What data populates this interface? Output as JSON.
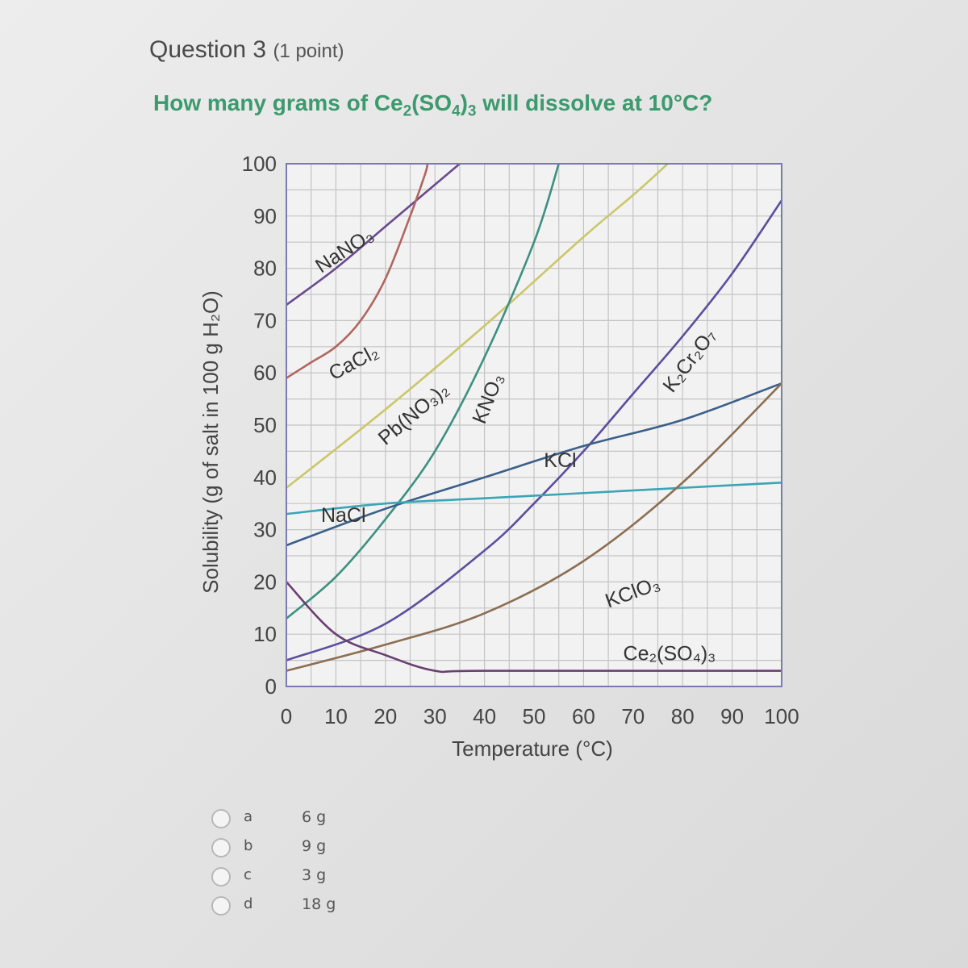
{
  "question": {
    "title": "Question 3",
    "points": "(1 point)",
    "prompt_before": "How many grams of Ce",
    "prompt_sub1": "2",
    "prompt_mid1": "(SO",
    "prompt_sub2": "4",
    "prompt_mid2": ")",
    "prompt_sub3": "3",
    "prompt_after": " will dissolve at 10°C?"
  },
  "chart_data": {
    "type": "line",
    "xlabel": "Temperature (°C)",
    "ylabel": "Solubility (g of salt in 100 g H₂O)",
    "xlim": [
      0,
      100
    ],
    "ylim": [
      0,
      100
    ],
    "xticks": [
      0,
      10,
      20,
      30,
      40,
      50,
      60,
      70,
      80,
      90,
      100
    ],
    "yticks": [
      0,
      10,
      20,
      30,
      40,
      50,
      60,
      70,
      80,
      90,
      100
    ],
    "grid": true,
    "series": [
      {
        "name": "NaNO3",
        "color": "#6a4a8e",
        "points": [
          [
            0,
            73
          ],
          [
            10,
            80
          ],
          [
            20,
            88
          ],
          [
            30,
            96
          ],
          [
            35,
            100
          ]
        ],
        "label": {
          "text": "NaNO₃",
          "x": 7,
          "y": 79,
          "angle": -33
        }
      },
      {
        "name": "CaCl2",
        "color": "#b0665e",
        "points": [
          [
            0,
            59
          ],
          [
            5,
            62
          ],
          [
            10,
            65
          ],
          [
            15,
            70
          ],
          [
            20,
            78
          ],
          [
            25,
            90
          ],
          [
            28,
            98
          ],
          [
            28.5,
            100
          ]
        ],
        "label": {
          "text": "CaCl₂",
          "x": 9.5,
          "y": 58.5,
          "angle": -28
        }
      },
      {
        "name": "Pb(NO3)2",
        "color": "#ccc66a",
        "points": [
          [
            0,
            38
          ],
          [
            20,
            53
          ],
          [
            40,
            69
          ],
          [
            60,
            86
          ],
          [
            70,
            94
          ],
          [
            77,
            100
          ]
        ],
        "label": {
          "text": "Pb(NO₃)₂",
          "x": 20,
          "y": 46,
          "angle": -40
        }
      },
      {
        "name": "KNO3",
        "color": "#3d9081",
        "points": [
          [
            0,
            13
          ],
          [
            10,
            21
          ],
          [
            20,
            32
          ],
          [
            30,
            45
          ],
          [
            40,
            63
          ],
          [
            50,
            85
          ],
          [
            55,
            100
          ]
        ],
        "label": {
          "text": "KNO₃",
          "x": 40,
          "y": 50,
          "angle": -68
        }
      },
      {
        "name": "K2Cr2O7",
        "color": "#5a4f9e",
        "points": [
          [
            0,
            5
          ],
          [
            20,
            12
          ],
          [
            40,
            26
          ],
          [
            50,
            35
          ],
          [
            60,
            45
          ],
          [
            70,
            56
          ],
          [
            80,
            67
          ],
          [
            90,
            79
          ],
          [
            100,
            93
          ]
        ],
        "label": {
          "text": "K₂Cr₂O₇",
          "x": 78,
          "y": 56,
          "angle": -53
        }
      },
      {
        "name": "KCl",
        "color": "#3a5f8a",
        "points": [
          [
            0,
            27
          ],
          [
            20,
            34
          ],
          [
            40,
            40
          ],
          [
            60,
            46
          ],
          [
            80,
            51
          ],
          [
            100,
            58
          ]
        ],
        "label": {
          "text": "KCl",
          "x": 52,
          "y": 42
        }
      },
      {
        "name": "NaCl",
        "color": "#3aa5b5",
        "points": [
          [
            0,
            33
          ],
          [
            20,
            35
          ],
          [
            40,
            36
          ],
          [
            60,
            37
          ],
          [
            80,
            38
          ],
          [
            100,
            39
          ]
        ],
        "label": {
          "text": "NaCl",
          "x": 7,
          "y": 31.5
        }
      },
      {
        "name": "KClO3",
        "color": "#8c6e52",
        "points": [
          [
            0,
            3
          ],
          [
            20,
            8
          ],
          [
            40,
            14
          ],
          [
            60,
            24
          ],
          [
            80,
            39
          ],
          [
            100,
            58
          ]
        ],
        "label": {
          "text": "KClO₃",
          "x": 65,
          "y": 15,
          "angle": -20
        }
      },
      {
        "name": "Ce2(SO4)3",
        "color": "#6a3f72",
        "points": [
          [
            0,
            20
          ],
          [
            10,
            10
          ],
          [
            20,
            6
          ],
          [
            30,
            3
          ],
          [
            40,
            3
          ],
          [
            100,
            3
          ]
        ],
        "label": {
          "text": "Ce₂(SO₄)₃",
          "x": 68,
          "y": 5
        }
      }
    ]
  },
  "options": [
    {
      "letter": "a",
      "value": "6 g"
    },
    {
      "letter": "b",
      "value": "9 g"
    },
    {
      "letter": "c",
      "value": "3 g"
    },
    {
      "letter": "d",
      "value": "18 g"
    }
  ]
}
